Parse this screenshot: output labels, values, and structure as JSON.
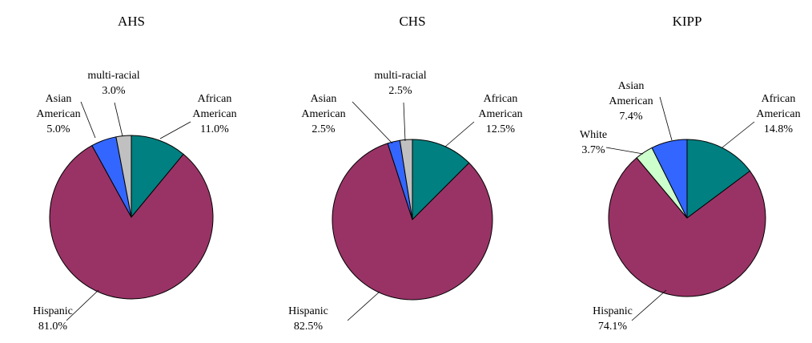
{
  "colors": {
    "african_american": "#008080",
    "hispanic": "#993366",
    "asian_american": "#3366FF",
    "multi_racial": "#C0C0C0",
    "white": "#CCFFCC",
    "outline": "#000000"
  },
  "chart_data": [
    {
      "type": "pie",
      "title": "AHS",
      "slices": [
        {
          "key": "african_american",
          "lines": [
            "African",
            "American",
            "11.0%"
          ],
          "value": 11.0
        },
        {
          "key": "hispanic",
          "lines": [
            "Hispanic",
            "81.0%"
          ],
          "value": 81.0
        },
        {
          "key": "asian_american",
          "lines": [
            "Asian",
            "American",
            "5.0%"
          ],
          "value": 5.0
        },
        {
          "key": "multi_racial",
          "lines": [
            "multi-racial",
            "3.0%"
          ],
          "value": 3.0
        }
      ]
    },
    {
      "type": "pie",
      "title": "CHS",
      "slices": [
        {
          "key": "african_american",
          "lines": [
            "African",
            "American",
            "12.5%"
          ],
          "value": 12.5
        },
        {
          "key": "hispanic",
          "lines": [
            "Hispanic",
            "82.5%"
          ],
          "value": 82.5
        },
        {
          "key": "asian_american",
          "lines": [
            "Asian",
            "American",
            "2.5%"
          ],
          "value": 2.5
        },
        {
          "key": "multi_racial",
          "lines": [
            "multi-racial",
            "2.5%"
          ],
          "value": 2.5
        }
      ]
    },
    {
      "type": "pie",
      "title": "KIPP",
      "slices": [
        {
          "key": "african_american",
          "lines": [
            "African",
            "American",
            "14.8%"
          ],
          "value": 14.8
        },
        {
          "key": "hispanic",
          "lines": [
            "Hispanic",
            "74.1%"
          ],
          "value": 74.1
        },
        {
          "key": "white",
          "lines": [
            "White",
            "3.7%"
          ],
          "value": 3.7
        },
        {
          "key": "asian_american",
          "lines": [
            "Asian",
            "American",
            "7.4%"
          ],
          "value": 7.4
        }
      ]
    }
  ]
}
